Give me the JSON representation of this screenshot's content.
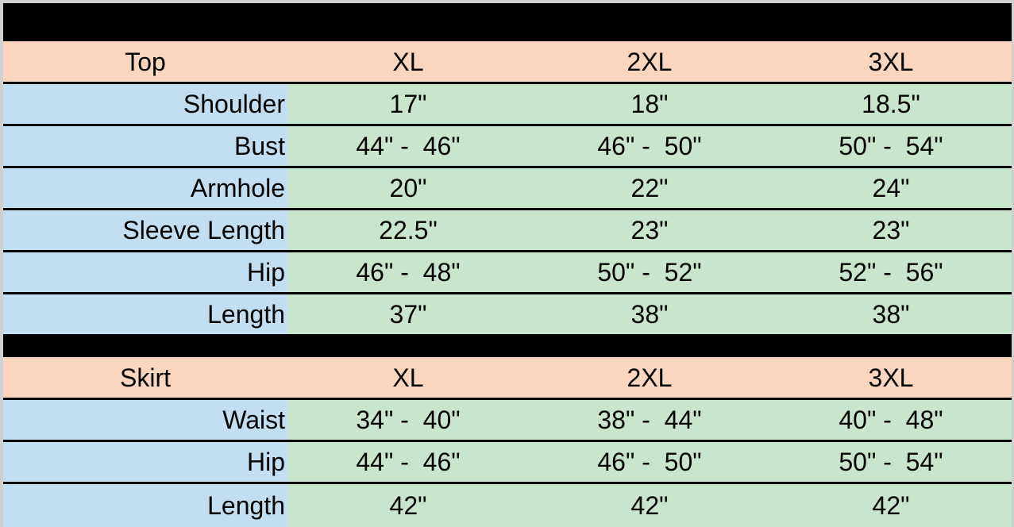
{
  "colors": {
    "page_background": "#d0d0d0",
    "banner": "#000000",
    "section_header_fill": "#fbd6be",
    "label_fill": "#c1def2",
    "value_fill": "#c7e6cb",
    "rule": "#000000",
    "text": "#000000"
  },
  "sections": [
    {
      "name": "Top",
      "sizes": [
        "XL",
        "2XL",
        "3XL"
      ],
      "rows": [
        {
          "label": "Shoulder",
          "values": [
            "17\"",
            "18\"",
            "18.5\""
          ]
        },
        {
          "label": "Bust",
          "values": [
            "44\" -  46\"",
            "46\" -  50\"",
            "50\" -  54\""
          ]
        },
        {
          "label": "Armhole",
          "values": [
            "20\"",
            "22\"",
            "24\""
          ]
        },
        {
          "label": "Sleeve Length",
          "values": [
            "22.5\"",
            "23\"",
            "23\""
          ]
        },
        {
          "label": "Hip",
          "values": [
            "46\" -  48\"",
            "50\" -  52\"",
            "52\" -  56\""
          ]
        },
        {
          "label": "Length",
          "values": [
            "37\"",
            "38\"",
            "38\""
          ]
        }
      ]
    },
    {
      "name": "Skirt",
      "sizes": [
        "XL",
        "2XL",
        "3XL"
      ],
      "rows": [
        {
          "label": "Waist",
          "values": [
            "34\" -  40\"",
            "38\" -  44\"",
            "40\" -  48\""
          ]
        },
        {
          "label": "Hip",
          "values": [
            "44\" -  46\"",
            "46\" -  50\"",
            "50\" -  54\""
          ]
        },
        {
          "label": "Length",
          "values": [
            "42\"",
            "42\"",
            "42\""
          ]
        }
      ]
    }
  ]
}
